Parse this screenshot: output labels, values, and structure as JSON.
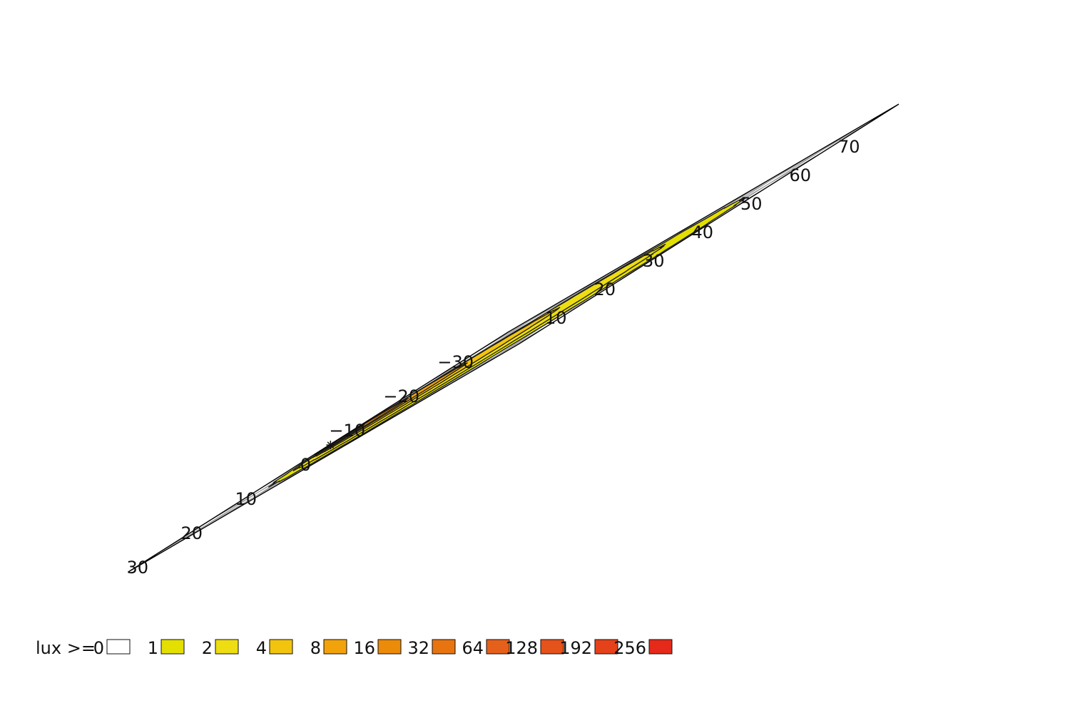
{
  "chart_data": {
    "type": "heatmap",
    "title": "",
    "xlabel": "",
    "ylabel": "",
    "x_axis": {
      "ticks": [
        -30,
        -20,
        -10,
        0,
        10,
        20,
        30
      ],
      "range": [
        -35,
        35
      ]
    },
    "y_axis": {
      "ticks": [
        10,
        20,
        30,
        40,
        50,
        60,
        70
      ],
      "range": [
        0,
        80
      ]
    },
    "grid": true,
    "projection": "isometric",
    "source_position": [
      0,
      0
    ],
    "isolux_levels": [
      {
        "lux": 1,
        "center": [
          1,
          40
        ],
        "radius_x": 30,
        "radius_y": 35,
        "color": "#e3df00"
      },
      {
        "lux": 2,
        "center": [
          -1,
          32
        ],
        "radius_x": 24,
        "radius_y": 26.5,
        "color": "#eddd12"
      },
      {
        "lux": 4,
        "center": [
          -2,
          22
        ],
        "radius_x": 16,
        "radius_y": 17.5,
        "color": "#f2c40e"
      },
      {
        "lux": 8,
        "center": [
          -1,
          14
        ],
        "radius_x": 10,
        "radius_y": 10.5,
        "color": "#f2a30c"
      },
      {
        "lux": 16,
        "center": [
          0,
          9
        ],
        "radius_x": 6,
        "radius_y": 6.5,
        "color": "#ec8a0a"
      },
      {
        "lux": 32,
        "center": [
          0.5,
          5
        ],
        "radius_x": 3.2,
        "radius_y": 3.5,
        "color": "#e87410"
      },
      {
        "lux": 64,
        "center": [
          0.7,
          3
        ],
        "radius_x": 0.9,
        "radius_y": 0.9,
        "color": "#e5601a"
      }
    ],
    "legend": {
      "prefix": "lux >=",
      "placement": "bottom",
      "entries": [
        {
          "label": "0",
          "color": "#ffffff"
        },
        {
          "label": "1",
          "color": "#e3df00"
        },
        {
          "label": "2",
          "color": "#eddd12"
        },
        {
          "label": "4",
          "color": "#f2c40e"
        },
        {
          "label": "8",
          "color": "#f2a30c"
        },
        {
          "label": "16",
          "color": "#ec8a0a"
        },
        {
          "label": "32",
          "color": "#e87410"
        },
        {
          "label": "64",
          "color": "#e5601a"
        },
        {
          "label": "128",
          "color": "#e5521a"
        },
        {
          "label": "192",
          "color": "#e5411a"
        },
        {
          "label": "256",
          "color": "#e52a1a"
        }
      ]
    }
  }
}
